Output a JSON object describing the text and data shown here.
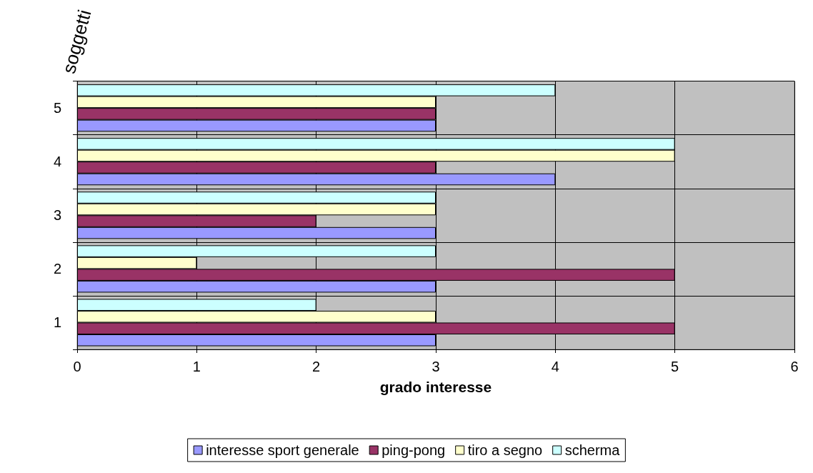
{
  "chart_data": {
    "type": "bar",
    "orientation": "horizontal",
    "xlabel": "grado interesse",
    "ylabel": "soggetti",
    "categories": [
      "5",
      "4",
      "3",
      "2",
      "1"
    ],
    "series": [
      {
        "name": "interesse sport generale",
        "color": "#9999ff",
        "values": [
          3,
          4,
          3,
          3,
          3
        ]
      },
      {
        "name": "ping-pong",
        "color": "#993366",
        "values": [
          3,
          3,
          2,
          5,
          5
        ]
      },
      {
        "name": "tiro a segno",
        "color": "#ffffcc",
        "values": [
          3,
          5,
          3,
          1,
          3
        ]
      },
      {
        "name": "scherma",
        "color": "#ccffff",
        "values": [
          4,
          5,
          3,
          3,
          2
        ]
      }
    ],
    "xlim": [
      0,
      6
    ],
    "xticks": [
      0,
      1,
      2,
      3,
      4,
      5,
      6
    ],
    "grid": true,
    "legend": "bottom"
  }
}
